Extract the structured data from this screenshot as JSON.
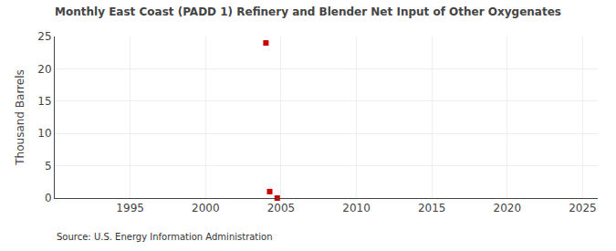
{
  "chart_data": {
    "type": "scatter",
    "title": "Monthly East Coast (PADD 1) Refinery and Blender Net Input of Other Oxygenates",
    "ylabel": "Thousand Barrels",
    "annotations": [
      "Source: U.S. Energy Information Administration"
    ],
    "x": [
      2004.0,
      2004.25,
      2004.75
    ],
    "values": [
      24.0,
      1.0,
      0.0
    ],
    "color": "#cc0000",
    "marker": "square",
    "xlim": [
      1990,
      2026
    ],
    "ylim": [
      0,
      25
    ],
    "xticks": [
      1995,
      2000,
      2005,
      2010,
      2015,
      2020,
      2025
    ],
    "yticks": [
      0,
      5,
      10,
      15,
      20,
      25
    ],
    "grid": true
  }
}
